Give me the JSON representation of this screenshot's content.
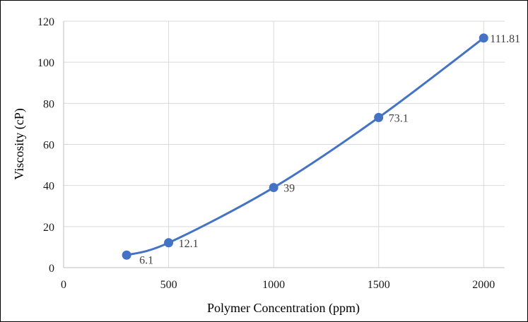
{
  "chart_data": {
    "type": "line",
    "smooth": true,
    "x": [
      300,
      500,
      1000,
      1500,
      2000
    ],
    "series": [
      {
        "values": [
          6.1,
          12.1,
          39,
          73.1,
          111.81
        ],
        "data_labels": [
          "6.1",
          "12.1",
          "39",
          "73.1",
          "111.81"
        ]
      }
    ],
    "title": "",
    "xlabel": "Polymer Concentration (ppm)",
    "ylabel": "Viscosity (cP)",
    "xlim": [
      0,
      2100
    ],
    "ylim": [
      0,
      120
    ],
    "xticks": [
      0,
      500,
      1000,
      1500,
      2000
    ],
    "yticks": [
      0,
      20,
      40,
      60,
      80,
      100,
      120
    ],
    "xtick_labels": [
      "0",
      "500",
      "1000",
      "1500",
      "2000"
    ],
    "ytick_labels": [
      "0",
      "20",
      "40",
      "60",
      "80",
      "100",
      "120"
    ],
    "grid": true,
    "legend": "none",
    "colors": {
      "series": "#4472c4",
      "grid": "#d9d9d9",
      "axis": "#bfbfbf"
    }
  }
}
